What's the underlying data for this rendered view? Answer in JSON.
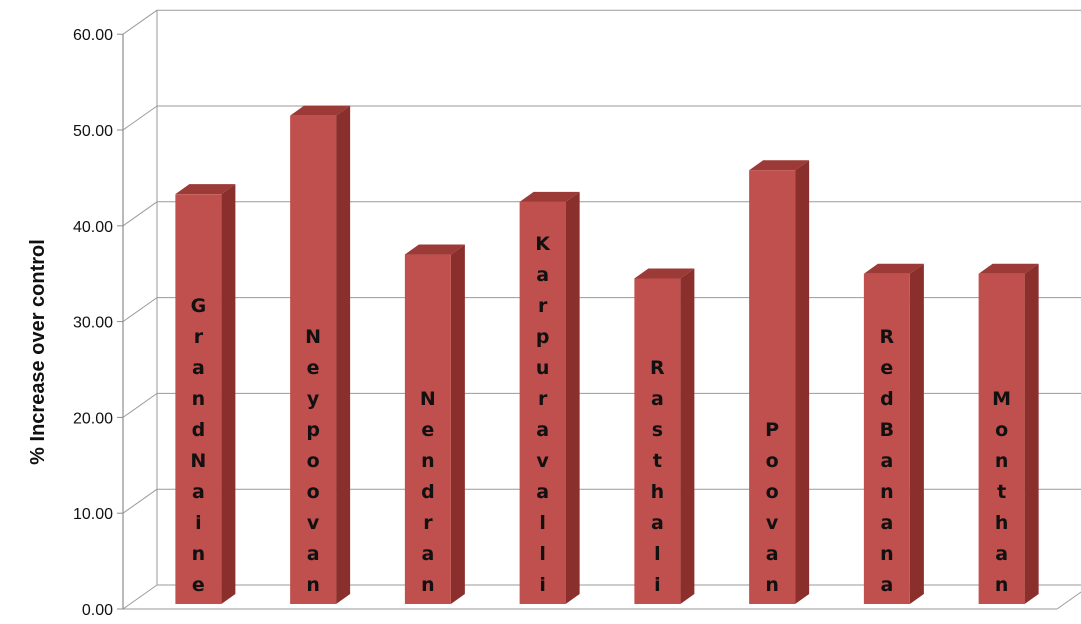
{
  "chart_data": {
    "type": "bar",
    "title": "",
    "xlabel": "",
    "ylabel": "% Increase over control",
    "ylim": [
      0,
      60
    ],
    "y_ticks": [
      "0.00",
      "10.00",
      "20.00",
      "30.00",
      "40.00",
      "50.00",
      "60.00"
    ],
    "grid": true,
    "legend": "none",
    "categories": [
      "GrandNaine",
      "Neypoovan",
      "Nendran",
      "Karpuravalli",
      "Rasthali",
      "Poovan",
      "RedBanana",
      "Monthan"
    ],
    "values": [
      43.3,
      51.5,
      37.0,
      42.5,
      34.5,
      45.8,
      35.0,
      35.0
    ],
    "colors": {
      "bar_front": "#c0504d",
      "bar_side": "#8a2f2c",
      "bar_top": "#9c3a37",
      "grid": "#9a9a9a",
      "axis": "#8c8c8c"
    }
  }
}
